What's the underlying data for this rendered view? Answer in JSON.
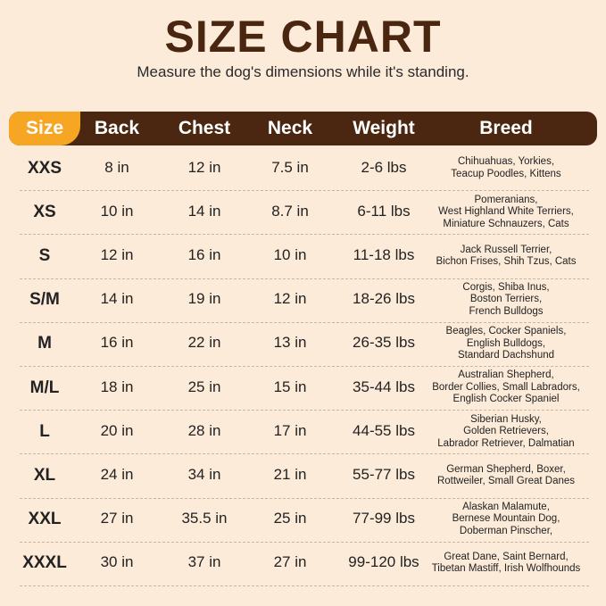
{
  "header": {
    "title": "SIZE CHART",
    "subtitle": "Measure the dog's dimensions while it's standing."
  },
  "table": {
    "columns": [
      "Size",
      "Back",
      "Chest",
      "Neck",
      "Weight",
      "Breed"
    ],
    "rows": [
      [
        "XXS",
        "8 in",
        "12 in",
        "7.5 in",
        "2-6 lbs",
        [
          "Chihuahuas, Yorkies,",
          "Teacup Poodles, Kittens"
        ]
      ],
      [
        "XS",
        "10 in",
        "14 in",
        "8.7 in",
        "6-11 lbs",
        [
          "Pomeranians,",
          "West Highland White Terriers,",
          "Miniature Schnauzers, Cats"
        ]
      ],
      [
        "S",
        "12 in",
        "16 in",
        "10 in",
        "11-18 lbs",
        [
          "Jack Russell Terrier,",
          "Bichon Frises, Shih Tzus, Cats"
        ]
      ],
      [
        "S/M",
        "14 in",
        "19 in",
        "12 in",
        "18-26 lbs",
        [
          "Corgis, Shiba Inus,",
          "Boston Terriers,",
          "French Bulldogs"
        ]
      ],
      [
        "M",
        "16 in",
        "22 in",
        "13 in",
        "26-35 lbs",
        [
          "Beagles, Cocker Spaniels,",
          "English Bulldogs,",
          "Standard Dachshund"
        ]
      ],
      [
        "M/L",
        "18 in",
        "25 in",
        "15 in",
        "35-44 lbs",
        [
          "Australian Shepherd,",
          "Border Collies, Small Labradors,",
          "English Cocker Spaniel"
        ]
      ],
      [
        "L",
        "20 in",
        "28 in",
        "17 in",
        "44-55 lbs",
        [
          "Siberian Husky,",
          "Golden Retrievers,",
          "Labrador Retriever, Dalmatian"
        ]
      ],
      [
        "XL",
        "24 in",
        "34 in",
        "21 in",
        "55-77 lbs",
        [
          "German Shepherd, Boxer,",
          "Rottweiler, Small Great Danes"
        ]
      ],
      [
        "XXL",
        "27 in",
        "35.5 in",
        "25 in",
        "77-99 lbs",
        [
          "Alaskan Malamute,",
          "Bernese Mountain Dog,",
          "Doberman Pinscher,"
        ]
      ],
      [
        "XXXL",
        "30 in",
        "37 in",
        "27 in",
        "99-120 lbs",
        [
          "Great Dane, Saint Bernard,",
          "Tibetan Mastiff, Irish Wolfhounds"
        ]
      ]
    ]
  }
}
